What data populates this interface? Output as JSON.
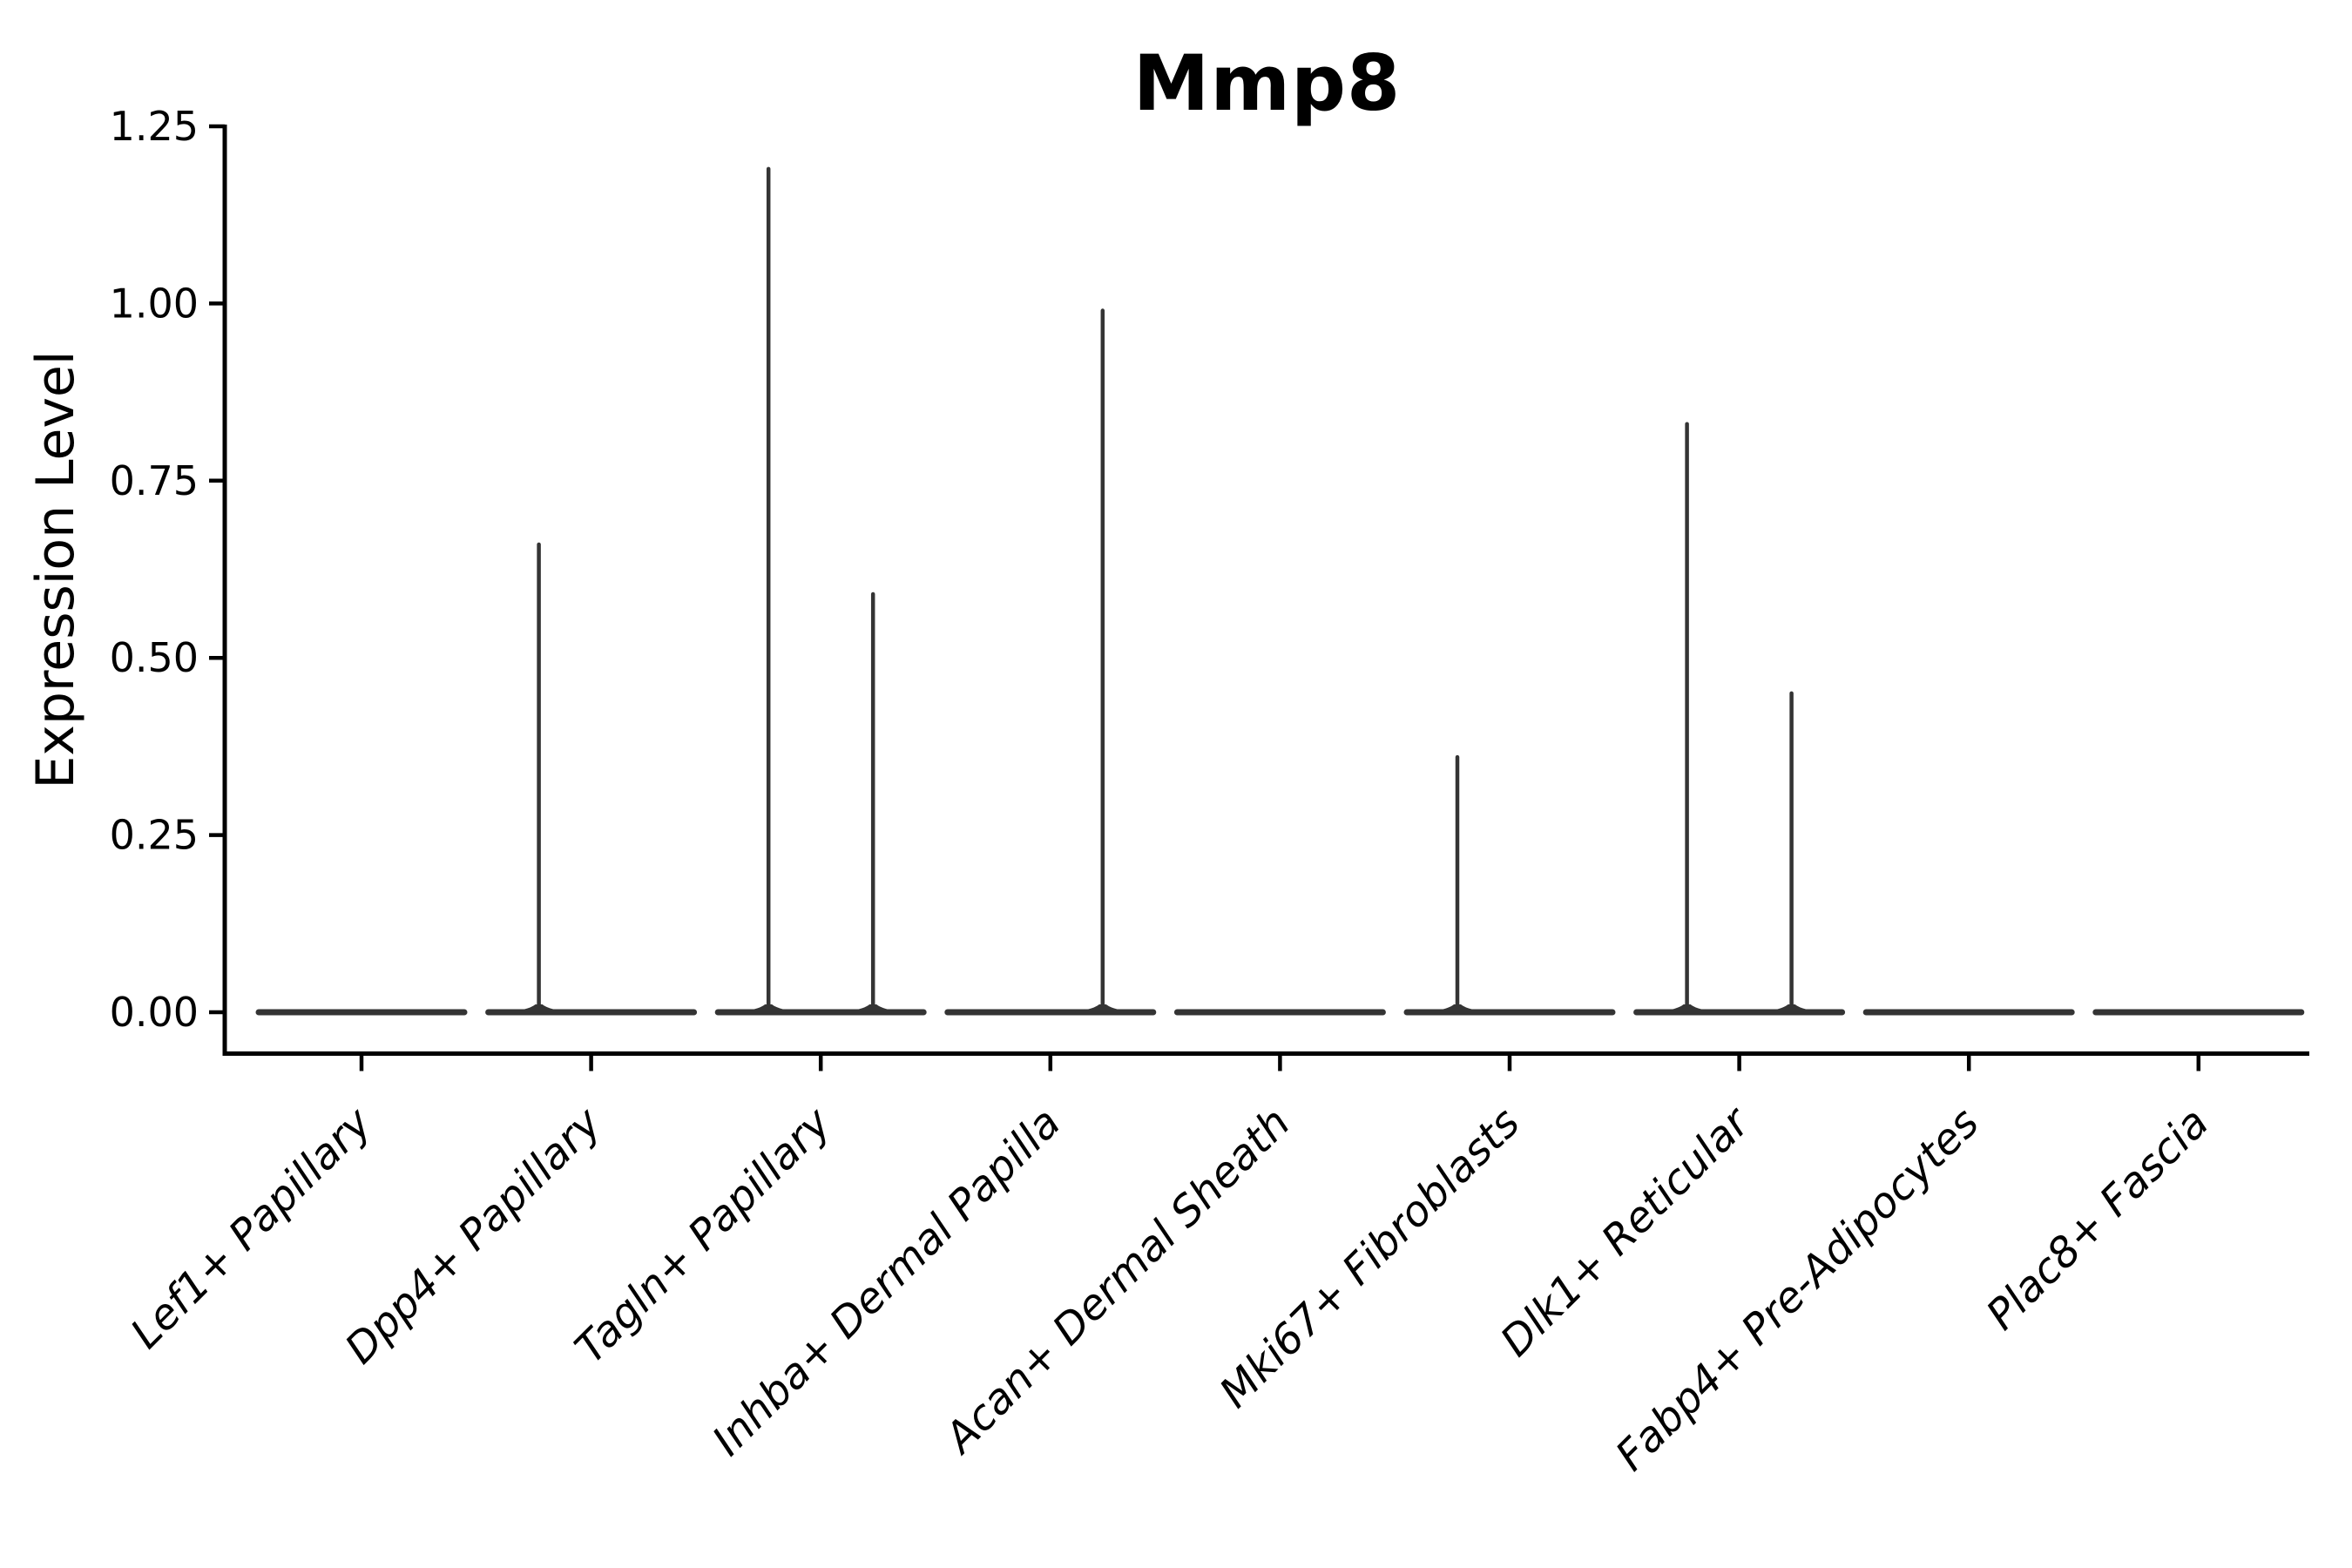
{
  "chart_data": {
    "type": "violin",
    "title": "Mmp8",
    "xlabel": "",
    "ylabel": "Expression Level",
    "ylim": [
      0,
      1.25
    ],
    "y_ticks": [
      0.0,
      0.25,
      0.5,
      0.75,
      1.0,
      1.25
    ],
    "y_tick_labels": [
      "0.00",
      "0.25",
      "0.50",
      "0.75",
      "1.00",
      "1.25"
    ],
    "grid": false,
    "legend": null,
    "categories": [
      "Lef1+ Papillary",
      "Dpp4+ Papillary",
      "Tagln+ Papillary",
      "Inhba+ Dermal Papilla",
      "Acan+ Dermal Sheath",
      "Mki67+ Fibroblasts",
      "Dlk1+ Reticular",
      "Fabp4+ Pre-Adipocytes",
      "Plac8+ Fascia"
    ],
    "violins": [
      {
        "category": "Lef1+ Papillary",
        "zero_bulk": true,
        "spikes": []
      },
      {
        "category": "Dpp4+ Papillary",
        "zero_bulk": true,
        "spikes": [
          {
            "side": "left",
            "max": 0.66
          }
        ]
      },
      {
        "category": "Tagln+ Papillary",
        "zero_bulk": true,
        "spikes": [
          {
            "side": "left",
            "max": 1.19
          },
          {
            "side": "right",
            "max": 0.59
          }
        ]
      },
      {
        "category": "Inhba+ Dermal Papilla",
        "zero_bulk": true,
        "spikes": [
          {
            "side": "right",
            "max": 0.99
          }
        ]
      },
      {
        "category": "Acan+ Dermal Sheath",
        "zero_bulk": true,
        "spikes": []
      },
      {
        "category": "Mki67+ Fibroblasts",
        "zero_bulk": true,
        "spikes": [
          {
            "side": "left",
            "max": 0.36
          }
        ]
      },
      {
        "category": "Dlk1+ Reticular",
        "zero_bulk": true,
        "spikes": [
          {
            "side": "left",
            "max": 0.83
          },
          {
            "side": "right",
            "max": 0.45
          }
        ]
      },
      {
        "category": "Fabp4+ Pre-Adipocytes",
        "zero_bulk": true,
        "spikes": []
      },
      {
        "category": "Plac8+ Fascia",
        "zero_bulk": true,
        "spikes": []
      }
    ]
  },
  "colors": {
    "violin": "#343434",
    "axis": "#000000",
    "text": "#000000",
    "background": "#ffffff"
  }
}
